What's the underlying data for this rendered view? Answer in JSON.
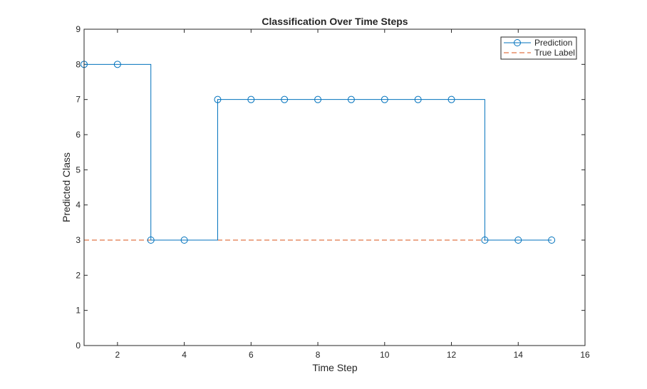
{
  "chart_data": {
    "type": "line",
    "title": "Classification Over Time Steps",
    "xlabel": "Time Step",
    "ylabel": "Predicted Class",
    "xlim": [
      1,
      16
    ],
    "ylim": [
      0,
      9
    ],
    "xticks": [
      2,
      4,
      6,
      8,
      10,
      12,
      14,
      16
    ],
    "yticks": [
      0,
      1,
      2,
      3,
      4,
      5,
      6,
      7,
      8,
      9
    ],
    "grid": false,
    "legend_position": "top-right",
    "series": [
      {
        "name": "Prediction",
        "style": "stairs-with-circle-markers",
        "color": "#0072BD",
        "x": [
          1,
          2,
          3,
          4,
          5,
          6,
          7,
          8,
          9,
          10,
          11,
          12,
          13,
          14,
          15
        ],
        "y": [
          8,
          8,
          3,
          3,
          7,
          7,
          7,
          7,
          7,
          7,
          7,
          7,
          3,
          3,
          3
        ]
      },
      {
        "name": "True Label",
        "style": "dashed-line",
        "color": "#D95319",
        "x": [
          1,
          15
        ],
        "y": [
          3,
          3
        ]
      }
    ]
  }
}
